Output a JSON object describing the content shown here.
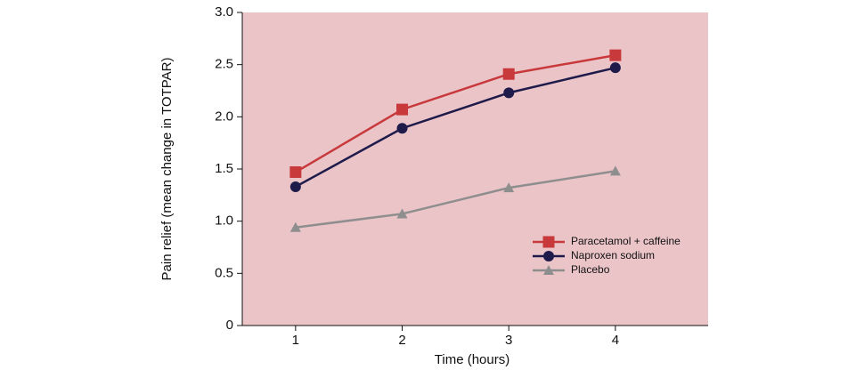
{
  "chart_data": {
    "type": "line",
    "x_label": "Time (hours)",
    "y_label": "Pain relief (mean change in TOTPAR)",
    "x": [
      1,
      2,
      3,
      4
    ],
    "xlim": [
      0.5,
      4.87
    ],
    "xticks": [
      1,
      2,
      3,
      4
    ],
    "ylim": [
      0,
      3
    ],
    "yticks": [
      0,
      0.5,
      {
        "value": 1,
        "label": "1.0"
      },
      1.5,
      {
        "value": 2,
        "label": "2.0"
      },
      2.5,
      {
        "value": 3,
        "label": "3.0"
      }
    ],
    "grid": false,
    "legend": "lower-right",
    "series": [
      {
        "name": "Paracetamol + caffeine",
        "color": "#c8393b",
        "marker": "square",
        "values": [
          1.47,
          2.07,
          2.41,
          2.59
        ]
      },
      {
        "name": "Naproxen sodium",
        "color": "#1e1b4b",
        "marker": "circle",
        "values": [
          1.33,
          1.89,
          2.23,
          2.47
        ]
      },
      {
        "name": "Placebo",
        "color": "#8e8e8e",
        "marker": "triangle",
        "values": [
          0.94,
          1.07,
          1.32,
          1.48
        ]
      }
    ]
  }
}
